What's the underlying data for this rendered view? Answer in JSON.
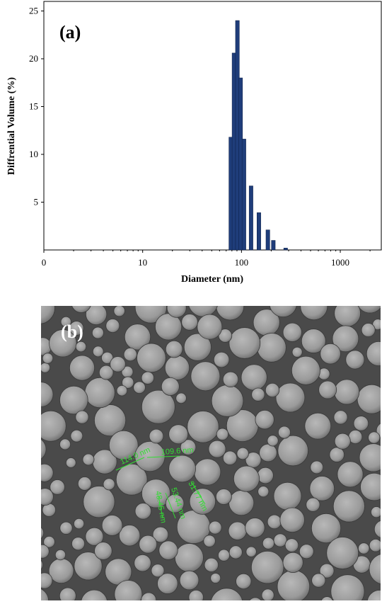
{
  "chart_data": {
    "type": "bar",
    "panel_label": "(a)",
    "xlabel": "Diameter (nm)",
    "ylabel": "Diffrential Volume (%)",
    "xscale": "log",
    "xlim": [
      1,
      2600
    ],
    "ylim": [
      0,
      26
    ],
    "x_ticks": [
      1,
      10,
      100,
      1000
    ],
    "x_tick_labels": [
      "0",
      "10",
      "100",
      "1000"
    ],
    "y_ticks": [
      5,
      10,
      15,
      20,
      25
    ],
    "bar_color": "#1f3d7a",
    "x": [
      78,
      84,
      91,
      98,
      106,
      115,
      125,
      138,
      150,
      165,
      185,
      210,
      240,
      280
    ],
    "values": [
      11.8,
      20.6,
      24.0,
      18.0,
      11.6,
      0,
      6.7,
      0,
      3.9,
      0,
      2.1,
      1.0,
      0,
      0.2
    ]
  },
  "sem_panel": {
    "label": "(b)",
    "measurements": [
      "114.0 nm",
      "109.6 nm",
      "31.77 nm",
      "53.44 nm",
      "48.45 nm"
    ],
    "annotation_color": "#33dd33"
  }
}
